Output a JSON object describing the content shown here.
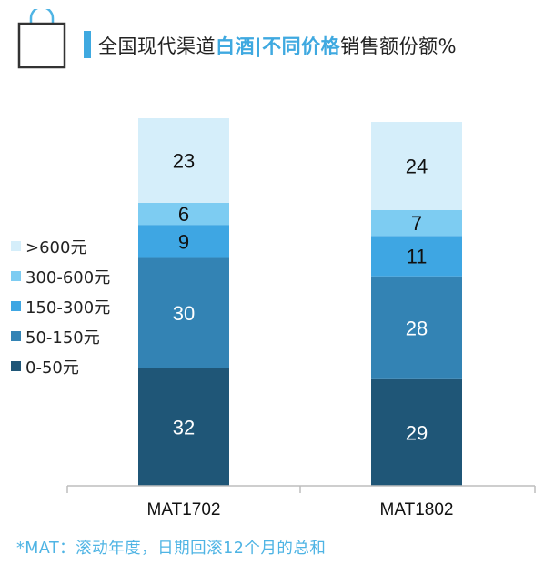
{
  "header": {
    "title_prefix": "全国现代渠道",
    "title_highlight1": "白酒",
    "title_separator": "|",
    "title_highlight2": "不同价格",
    "title_suffix": "销售额份额%",
    "highlight_color": "#3fa9e0",
    "bag_icon": "shopping-bag-icon"
  },
  "footnote": "*MAT：滚动年度，日期回滚12个月的总和",
  "chart_data": {
    "type": "bar",
    "stacked": true,
    "percent": true,
    "title": "",
    "xlabel": "",
    "ylabel": "",
    "ylim": [
      0,
      100
    ],
    "grid": false,
    "legend_position": "left",
    "categories": [
      "MAT1702",
      "MAT1802"
    ],
    "series": [
      {
        "name": "0-50元",
        "values": [
          32,
          29
        ],
        "color": "#1f5677"
      },
      {
        "name": "50-150元",
        "values": [
          30,
          28
        ],
        "color": "#3383b4"
      },
      {
        "name": "150-300元",
        "values": [
          9,
          11
        ],
        "color": "#3ea6e3"
      },
      {
        "name": "300-600元",
        "values": [
          6,
          7
        ],
        "color": "#7dccf2"
      },
      {
        "name": ">600元",
        "values": [
          23,
          24
        ],
        "color": "#d5eefa"
      }
    ]
  }
}
